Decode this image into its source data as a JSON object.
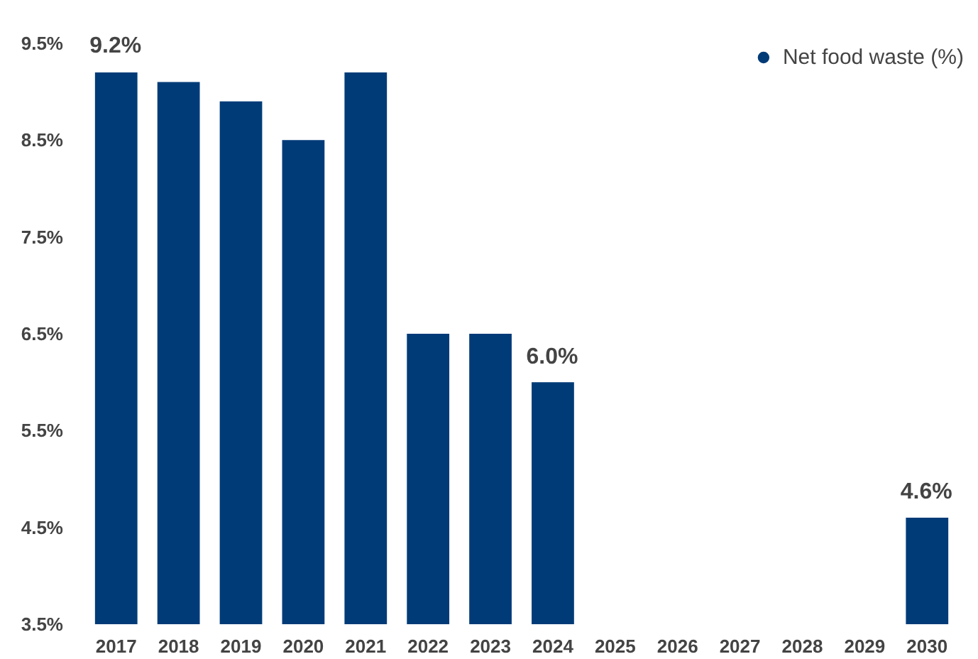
{
  "chart_data": {
    "type": "bar",
    "categories": [
      "2017",
      "2018",
      "2019",
      "2020",
      "2021",
      "2022",
      "2023",
      "2024",
      "2025",
      "2026",
      "2027",
      "2028",
      "2029",
      "2030"
    ],
    "series": [
      {
        "name": "Net food waste (%)",
        "color": "#003b78",
        "values": [
          9.2,
          9.1,
          8.9,
          8.5,
          9.2,
          6.5,
          6.5,
          6.0,
          null,
          null,
          null,
          null,
          null,
          4.6
        ],
        "value_labels": [
          "9.2%",
          null,
          null,
          null,
          null,
          null,
          null,
          "6.0%",
          null,
          null,
          null,
          null,
          null,
          "4.6%"
        ]
      }
    ],
    "ylim": [
      3.5,
      9.5
    ],
    "yticks": [
      {
        "value": 3.5,
        "label": "3.5%"
      },
      {
        "value": 4.5,
        "label": "4.5%"
      },
      {
        "value": 5.5,
        "label": "5.5%"
      },
      {
        "value": 6.5,
        "label": "6.5%"
      },
      {
        "value": 7.5,
        "label": "7.5%"
      },
      {
        "value": 8.5,
        "label": "8.5%"
      },
      {
        "value": 9.5,
        "label": "9.5%"
      }
    ],
    "grid": false,
    "legend": "top right",
    "marker": "circle"
  }
}
